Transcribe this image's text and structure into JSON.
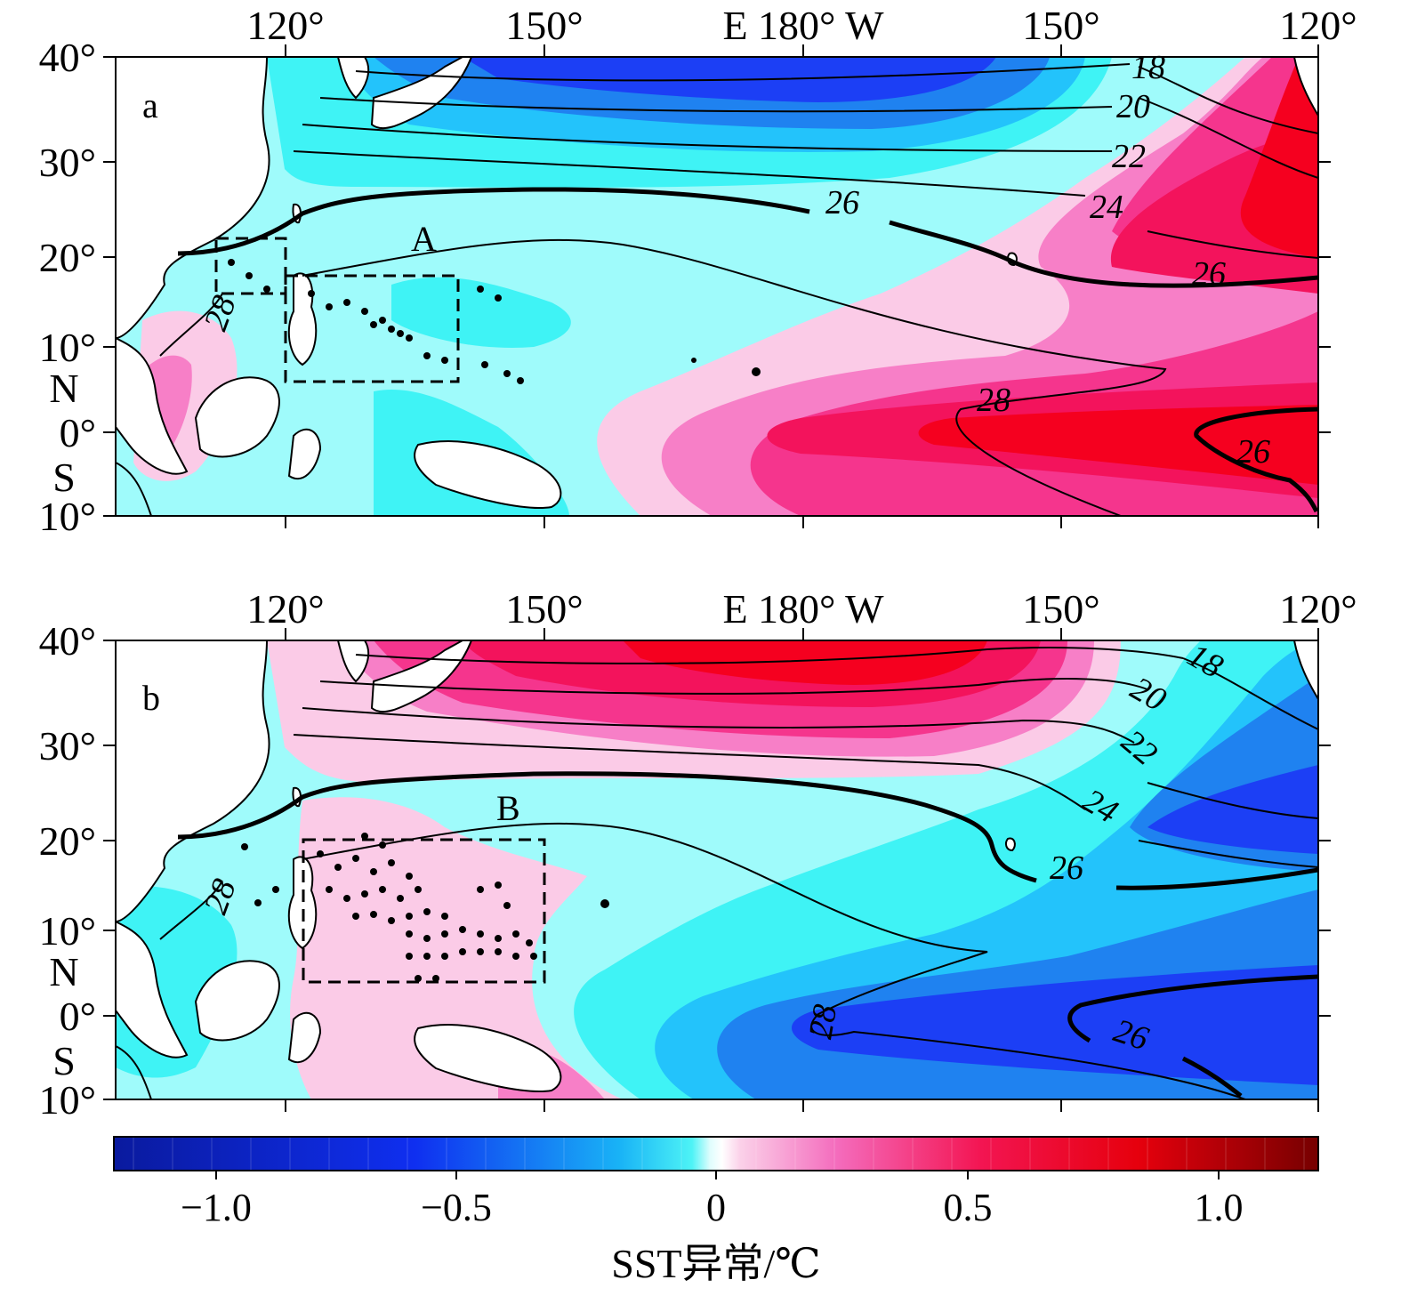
{
  "figure": {
    "lon_ticks": [
      "120°",
      "150°",
      "E 180° W",
      "150°",
      "120°"
    ],
    "lat_ticks": [
      "40°",
      "30°",
      "20°",
      "10°",
      "N",
      "0°",
      "S",
      "10°"
    ]
  },
  "panels": [
    {
      "letter": "a",
      "box_label": "A",
      "contour_labels": [
        "18",
        "20",
        "22",
        "24",
        "26",
        "26",
        "28",
        "26",
        "28"
      ]
    },
    {
      "letter": "b",
      "box_label": "B",
      "contour_labels": [
        "18",
        "20",
        "22",
        "24",
        "26",
        "28",
        "26",
        "28"
      ]
    }
  ],
  "colorbar": {
    "ticks": [
      "−1.0",
      "−0.5",
      "0",
      "0.5",
      "1.0"
    ],
    "title": "SST异常/℃",
    "range": [
      -1.25,
      1.25
    ]
  },
  "colors": {
    "land": "#ffffff",
    "light_cyan": "#9ffbfb",
    "cyan": "#3ff3f5",
    "light_blue": "#23c3fb",
    "blue": "#1f82f0",
    "deep_blue": "#1c3ff5",
    "light_pink": "#fbcbe7",
    "pink": "#f77fc7",
    "magenta": "#f5358d",
    "red_pink": "#f3135c",
    "red": "#f5001f"
  }
}
